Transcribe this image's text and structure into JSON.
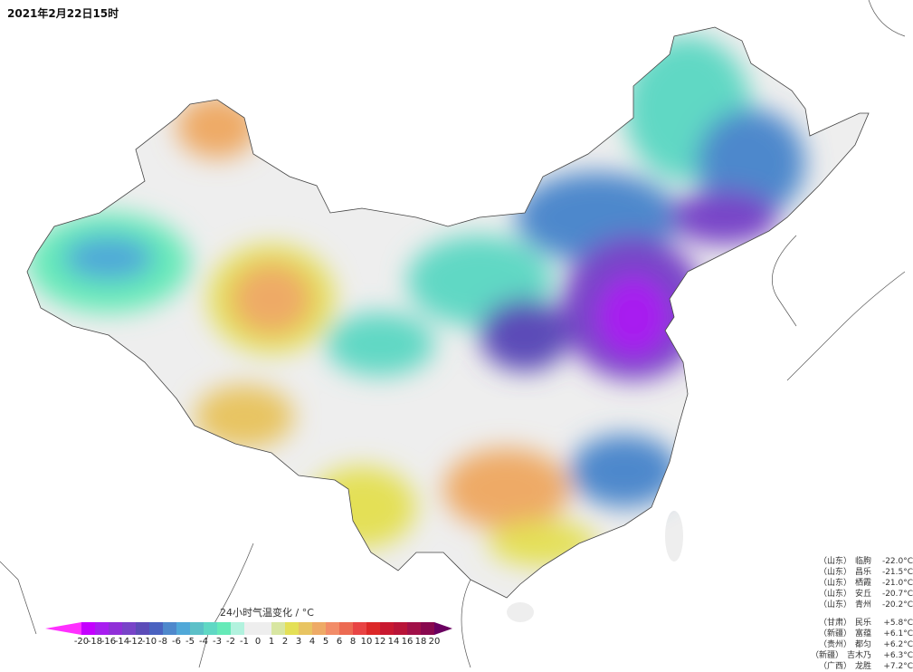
{
  "title": "2021年2月22日15时",
  "legend": {
    "title": "24小时气温变化 / °C",
    "ticks": [
      "-20",
      "-18",
      "-16",
      "-14",
      "-12",
      "-10",
      "-8",
      "-6",
      "-5",
      "-4",
      "-3",
      "-2",
      "-1",
      "0",
      "1",
      "2",
      "3",
      "4",
      "5",
      "6",
      "8",
      "10",
      "12",
      "14",
      "16",
      "18",
      "20"
    ],
    "low_tip_color": "#ff30ff",
    "high_tip_color": "#6a0060",
    "colors": [
      "#c400ff",
      "#a81ef0",
      "#9030d8",
      "#7844c8",
      "#5c4cb8",
      "#4a62c0",
      "#4e88cc",
      "#50a8d8",
      "#5cc0c8",
      "#60d8c4",
      "#66eab8",
      "#b2f2de",
      "#eeeeee",
      "#eeeeee",
      "#d8e6a2",
      "#e4e056",
      "#e8c462",
      "#eeaa66",
      "#f28c68",
      "#ec6a52",
      "#e84444",
      "#dc2828",
      "#c81830",
      "#b81438",
      "#a01048",
      "#88084e"
    ]
  },
  "stations": {
    "cold": [
      {
        "province": "（山东）",
        "name": "临朐",
        "value": "-22.0°C"
      },
      {
        "province": "（山东）",
        "name": "昌乐",
        "value": "-21.5°C"
      },
      {
        "province": "（山东）",
        "name": "栖霞",
        "value": "-21.0°C"
      },
      {
        "province": "（山东）",
        "name": "安丘",
        "value": "-20.7°C"
      },
      {
        "province": "（山东）",
        "name": "青州",
        "value": "-20.2°C"
      }
    ],
    "warm": [
      {
        "province": "（甘肃）",
        "name": "民乐",
        "value": "+5.8°C"
      },
      {
        "province": "（新疆）",
        "name": "富蕴",
        "value": "+6.1°C"
      },
      {
        "province": "（贵州）",
        "name": "都匀",
        "value": "+6.2°C"
      },
      {
        "province": "（新疆）",
        "name": "吉木乃",
        "value": "+6.3°C"
      },
      {
        "province": "（广西）",
        "name": "龙胜",
        "value": "+7.2°C"
      }
    ]
  }
}
